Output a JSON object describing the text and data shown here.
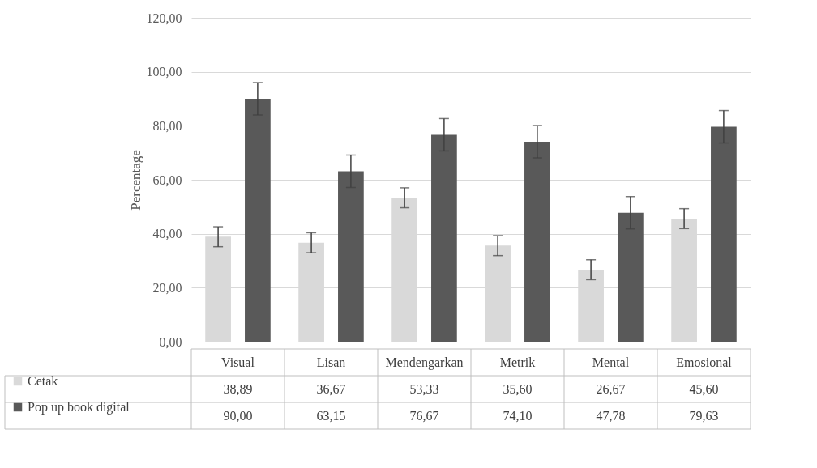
{
  "chart_data": {
    "type": "bar",
    "ylabel": "Percentage",
    "categories": [
      "Visual",
      "Lisan",
      "Mendengarkan",
      "Metrik",
      "Mental",
      "Emosional"
    ],
    "series": [
      {
        "name": "Cetak",
        "color": "#d9d9d9",
        "values": [
          38.89,
          36.67,
          53.33,
          35.6,
          26.67,
          45.6
        ],
        "value_labels": [
          "38,89",
          "36,67",
          "53,33",
          "35,60",
          "26,67",
          "45,60"
        ],
        "errors": [
          3.7,
          3.7,
          3.7,
          3.7,
          3.7,
          3.7
        ]
      },
      {
        "name": "Pop up book digital",
        "color": "#595959",
        "values": [
          90.0,
          63.15,
          76.67,
          74.1,
          47.78,
          79.63
        ],
        "value_labels": [
          "90,00",
          "63,15",
          "76,67",
          "74,10",
          "47,78",
          "79,63"
        ],
        "errors": [
          6,
          6,
          6,
          6,
          6,
          6
        ]
      }
    ],
    "ylim": [
      0,
      120
    ],
    "yticks": [
      {
        "value": 0,
        "label": "0,00"
      },
      {
        "value": 20,
        "label": "20,00"
      },
      {
        "value": 40,
        "label": "40,00"
      },
      {
        "value": 60,
        "label": "60,00"
      },
      {
        "value": 80,
        "label": "80,00"
      },
      {
        "value": 100,
        "label": "100,00"
      },
      {
        "value": 120,
        "label": "120,00"
      }
    ],
    "grid": "y",
    "legend": "bottom left"
  }
}
